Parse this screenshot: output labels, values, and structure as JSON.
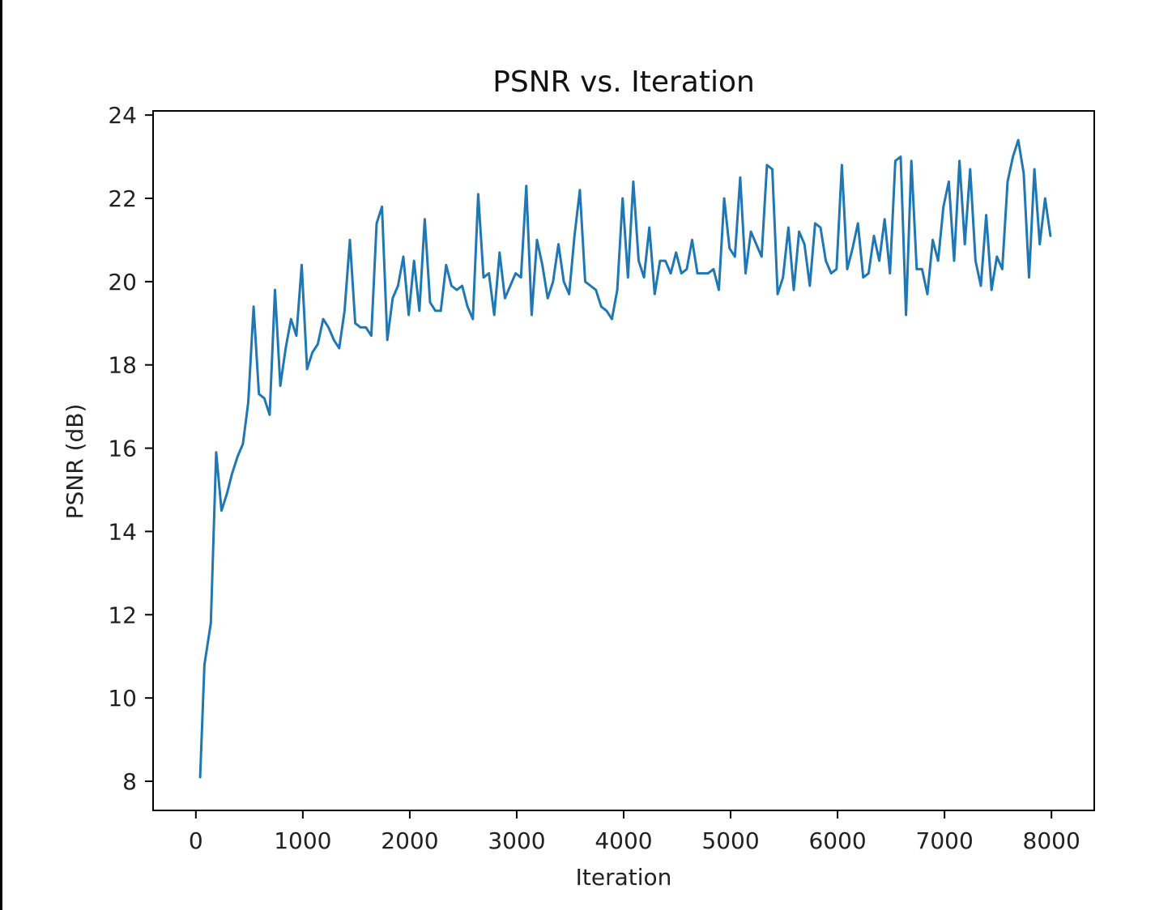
{
  "chart_data": {
    "type": "line",
    "title": "PSNR vs. Iteration",
    "xlabel": "Iteration",
    "ylabel": "PSNR (dB)",
    "xlim": [
      -400,
      8400
    ],
    "ylim": [
      7.3,
      24.1
    ],
    "xticks": [
      0,
      1000,
      2000,
      3000,
      4000,
      5000,
      6000,
      7000,
      8000
    ],
    "yticks": [
      8,
      10,
      12,
      14,
      16,
      18,
      20,
      22,
      24
    ],
    "grid": false,
    "series": [
      {
        "name": "PSNR",
        "color": "#1f77b4",
        "x": [
          40,
          80,
          140,
          190,
          240,
          290,
          340,
          390,
          440,
          490,
          540,
          590,
          640,
          690,
          740,
          790,
          840,
          890,
          940,
          990,
          1040,
          1090,
          1140,
          1190,
          1240,
          1290,
          1340,
          1390,
          1440,
          1490,
          1540,
          1590,
          1640,
          1690,
          1740,
          1790,
          1840,
          1890,
          1940,
          1990,
          2040,
          2090,
          2140,
          2190,
          2240,
          2290,
          2340,
          2390,
          2440,
          2490,
          2540,
          2590,
          2640,
          2690,
          2740,
          2790,
          2840,
          2890,
          2940,
          2990,
          3040,
          3090,
          3140,
          3190,
          3240,
          3290,
          3340,
          3390,
          3440,
          3490,
          3540,
          3590,
          3640,
          3690,
          3740,
          3790,
          3840,
          3890,
          3940,
          3990,
          4040,
          4090,
          4140,
          4190,
          4240,
          4290,
          4340,
          4390,
          4440,
          4490,
          4540,
          4590,
          4640,
          4690,
          4740,
          4790,
          4840,
          4890,
          4940,
          4990,
          5040,
          5090,
          5140,
          5190,
          5240,
          5290,
          5340,
          5390,
          5440,
          5490,
          5540,
          5590,
          5640,
          5690,
          5740,
          5790,
          5840,
          5890,
          5940,
          5990,
          6040,
          6090,
          6140,
          6190,
          6240,
          6290,
          6340,
          6390,
          6440,
          6490,
          6540,
          6590,
          6640,
          6690,
          6740,
          6790,
          6840,
          6890,
          6940,
          6990,
          7040,
          7090,
          7140,
          7190,
          7240,
          7290,
          7340,
          7390,
          7440,
          7490,
          7540,
          7590,
          7640,
          7690,
          7740,
          7790,
          7840,
          7890,
          7940,
          7990
        ],
        "y": [
          8.1,
          10.8,
          11.8,
          15.9,
          14.5,
          14.9,
          15.4,
          15.8,
          16.1,
          17.1,
          19.4,
          17.3,
          17.2,
          16.8,
          19.8,
          17.5,
          18.4,
          19.1,
          18.7,
          20.4,
          17.9,
          18.3,
          18.5,
          19.1,
          18.9,
          18.6,
          18.4,
          19.3,
          21.0,
          19.0,
          18.9,
          18.9,
          18.7,
          21.4,
          21.8,
          18.6,
          19.6,
          19.9,
          20.6,
          19.2,
          20.5,
          19.3,
          21.5,
          19.5,
          19.3,
          19.3,
          20.4,
          19.9,
          19.8,
          19.9,
          19.4,
          19.1,
          22.1,
          20.1,
          20.2,
          19.2,
          20.7,
          19.6,
          19.9,
          20.2,
          20.1,
          22.3,
          19.2,
          21.0,
          20.4,
          19.6,
          20.0,
          20.9,
          20.0,
          19.7,
          21.1,
          22.2,
          20.0,
          19.9,
          19.8,
          19.4,
          19.3,
          19.1,
          19.8,
          22.0,
          20.1,
          22.4,
          20.5,
          20.1,
          21.3,
          19.7,
          20.5,
          20.5,
          20.2,
          20.7,
          20.2,
          20.3,
          21.0,
          20.2,
          20.2,
          20.2,
          20.3,
          19.8,
          22.0,
          20.8,
          20.6,
          22.5,
          20.2,
          21.2,
          20.9,
          20.6,
          22.8,
          22.7,
          19.7,
          20.1,
          21.3,
          19.8,
          21.2,
          20.9,
          19.9,
          21.4,
          21.3,
          20.5,
          20.2,
          20.3,
          22.8,
          20.3,
          20.8,
          21.4,
          20.1,
          20.2,
          21.1,
          20.5,
          21.5,
          20.2,
          22.9,
          23.0,
          19.2,
          22.9,
          20.3,
          20.3,
          19.7,
          21.0,
          20.5,
          21.8,
          22.4,
          20.5,
          22.9,
          20.9,
          22.7,
          20.5,
          19.9,
          21.6,
          19.8,
          20.6,
          20.3,
          22.4,
          23.0,
          23.4,
          22.6,
          20.1,
          22.7,
          20.9,
          22.0,
          21.1
        ]
      }
    ]
  }
}
